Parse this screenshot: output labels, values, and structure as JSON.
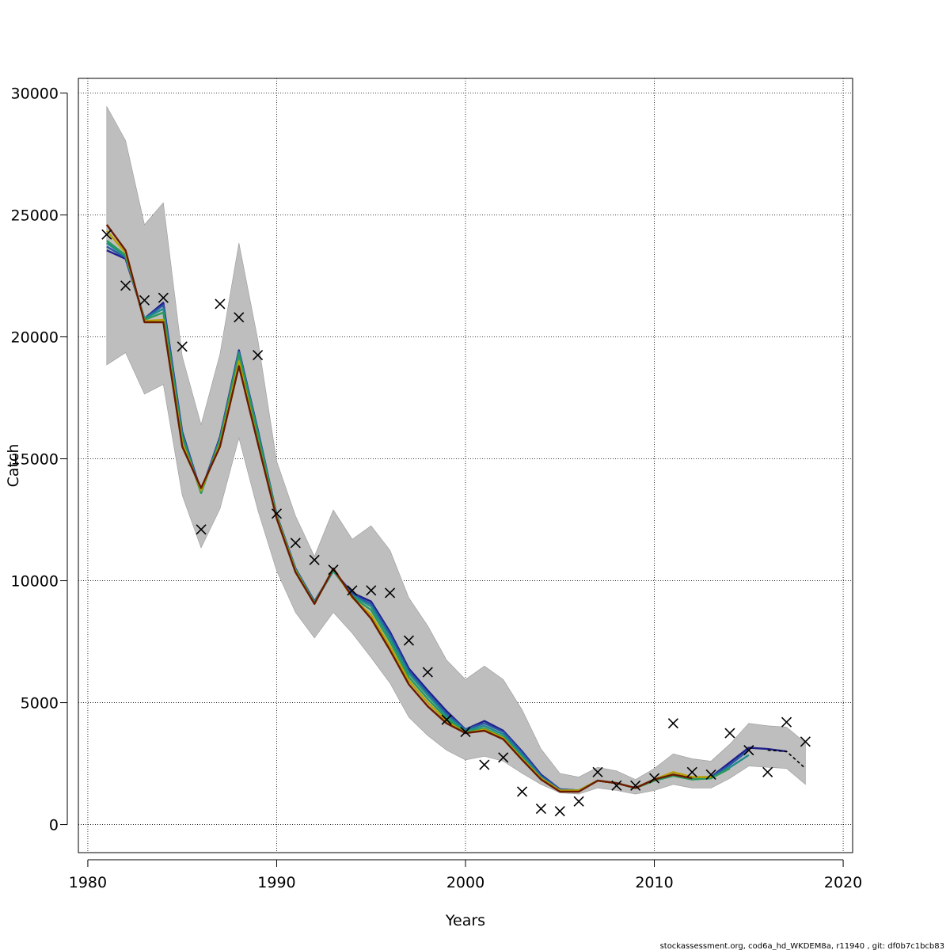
{
  "chart_data": {
    "type": "line",
    "xlabel": "Years",
    "ylabel": "Catch",
    "xlim": [
      1979.5,
      2020.5
    ],
    "ylim": [
      -1150,
      30600
    ],
    "xticks": [
      1980,
      1990,
      2000,
      2010,
      2020
    ],
    "yticks": [
      0,
      5000,
      10000,
      15000,
      20000,
      25000,
      30000
    ],
    "xtick_labels": [
      "1980",
      "1990",
      "2000",
      "2010",
      "2020"
    ],
    "ytick_labels": [
      "0",
      "5000",
      "10000",
      "15000",
      "20000",
      "25000",
      "30000"
    ],
    "grid": true,
    "colors": {
      "band": "#bebebe",
      "grid": "#000000",
      "points": "#000000",
      "series": [
        "#1f1f8c",
        "#2b57a8",
        "#1e8c8c",
        "#2a9a5a",
        "#b8a000",
        "#6b1a00",
        "#000000"
      ]
    },
    "band": {
      "x": [
        1981,
        1982,
        1983,
        1984,
        1985,
        1986,
        1987,
        1988,
        1989,
        1990,
        1991,
        1992,
        1993,
        1994,
        1995,
        1996,
        1997,
        1998,
        1999,
        2000,
        2001,
        2002,
        2003,
        2004,
        2005,
        2006,
        2007,
        2008,
        2009,
        2010,
        2011,
        2012,
        2013,
        2014,
        2015,
        2016,
        2017,
        2018
      ],
      "upper": [
        29450,
        28050,
        24600,
        25500,
        19200,
        16400,
        19300,
        23850,
        19900,
        14900,
        12650,
        11000,
        12900,
        11700,
        12250,
        11250,
        9300,
        8150,
        6750,
        5950,
        6500,
        5950,
        4700,
        3100,
        2100,
        1950,
        2350,
        2200,
        1850,
        2300,
        2900,
        2700,
        2600,
        3300,
        4150,
        4050,
        4000,
        3350
      ],
      "lower": [
        18850,
        19350,
        17650,
        18050,
        13500,
        11350,
        12950,
        15850,
        12900,
        10400,
        8700,
        7650,
        8700,
        7850,
        6850,
        5800,
        4400,
        3650,
        3050,
        2650,
        2800,
        2600,
        2100,
        1650,
        1300,
        1250,
        1500,
        1400,
        1250,
        1400,
        1650,
        1500,
        1500,
        1900,
        2400,
        2350,
        2300,
        1650
      ]
    },
    "series": [
      {
        "x": [
          1981,
          1982,
          1983,
          1984,
          1985,
          1986,
          1987,
          1988,
          1989,
          1990,
          1991,
          1992,
          1993,
          1994,
          1995,
          1996,
          1997,
          1998,
          1999,
          2000,
          2001,
          2002,
          2003,
          2004,
          2005,
          2006,
          2007,
          2008,
          2009,
          2010,
          2011,
          2012,
          2013,
          2014,
          2015,
          2016,
          2017
        ],
        "values": [
          23550,
          23200,
          20750,
          21400,
          16100,
          13650,
          15900,
          19450,
          16200,
          12700,
          10500,
          9150,
          10400,
          9500,
          9150,
          7900,
          6400,
          5500,
          4650,
          3900,
          4250,
          3850,
          3000,
          2050,
          1450,
          1400,
          1800,
          1700,
          1500,
          1850,
          2050,
          1900,
          1950,
          2550,
          3150,
          3100,
          3000
        ]
      },
      {
        "x": [
          1981,
          1982,
          1983,
          1984,
          1985,
          1986,
          1987,
          1988,
          1989,
          1990,
          1991,
          1992,
          1993,
          1994,
          1995,
          1996,
          1997,
          1998,
          1999,
          2000,
          2001,
          2002,
          2003,
          2004,
          2005,
          2006,
          2007,
          2008,
          2009,
          2010,
          2011,
          2012,
          2013,
          2014,
          2015
        ],
        "values": [
          23700,
          23250,
          20750,
          21300,
          16050,
          13650,
          15850,
          19400,
          16150,
          12700,
          10500,
          9150,
          10400,
          9450,
          9050,
          7800,
          6300,
          5400,
          4550,
          3900,
          4150,
          3800,
          2950,
          2000,
          1450,
          1400,
          1800,
          1700,
          1500,
          1850,
          2050,
          1900,
          1950,
          2450,
          3050
        ]
      },
      {
        "x": [
          1981,
          1982,
          1983,
          1984,
          1985,
          1986,
          1987,
          1988,
          1989,
          1990,
          1991,
          1992,
          1993,
          1994,
          1995,
          1996,
          1997,
          1998,
          1999,
          2000,
          2001,
          2002,
          2003,
          2004,
          2005,
          2006,
          2007,
          2008,
          2009,
          2010,
          2011,
          2012,
          2013,
          2014,
          2015
        ],
        "values": [
          23850,
          23300,
          20750,
          21150,
          15950,
          13600,
          15800,
          19350,
          16100,
          12650,
          10450,
          9100,
          10400,
          9400,
          8950,
          7650,
          6200,
          5300,
          4450,
          3850,
          4050,
          3700,
          2850,
          1950,
          1400,
          1400,
          1800,
          1700,
          1500,
          1800,
          2000,
          1850,
          1900,
          2350,
          2850
        ]
      },
      {
        "x": [
          1981,
          1982,
          1983,
          1984,
          1985,
          1986,
          1987,
          1988,
          1989,
          1990,
          1991,
          1992,
          1993,
          1994,
          1995,
          1996,
          1997,
          1998,
          1999,
          2000,
          2001,
          2002,
          2003,
          2004,
          2005,
          2006,
          2007,
          2008,
          2009,
          2010,
          2011,
          2012,
          2013,
          2014
        ],
        "values": [
          23950,
          23350,
          20700,
          21000,
          15850,
          13600,
          15750,
          19250,
          16000,
          12650,
          10450,
          9100,
          10450,
          9350,
          8800,
          7500,
          6050,
          5150,
          4350,
          3800,
          3950,
          3600,
          2750,
          1900,
          1400,
          1400,
          1800,
          1700,
          1500,
          1800,
          2000,
          1850,
          1900,
          2300
        ]
      },
      {
        "x": [
          1981,
          1982,
          1983,
          1984,
          1985,
          1986,
          1987,
          1988,
          1989,
          1990,
          1991,
          1992,
          1993,
          1994,
          1995,
          1996,
          1997,
          1998,
          1999,
          2000,
          2001,
          2002,
          2003,
          2004,
          2005,
          2006,
          2007,
          2008,
          2009,
          2010,
          2011,
          2012,
          2013
        ],
        "values": [
          24350,
          23450,
          20650,
          20700,
          15650,
          13700,
          15600,
          19000,
          15700,
          12600,
          10400,
          9050,
          10500,
          9300,
          8600,
          7300,
          5900,
          5000,
          4250,
          3750,
          3900,
          3550,
          2700,
          1900,
          1400,
          1400,
          1800,
          1700,
          1500,
          1850,
          2150,
          1950,
          1950
        ]
      },
      {
        "x": [
          1981,
          1982,
          1983,
          1984,
          1985,
          1986,
          1987,
          1988,
          1989,
          1990,
          1991,
          1992,
          1993,
          1994,
          1995,
          1996,
          1997,
          1998,
          1999,
          2000,
          2001,
          2002,
          2003,
          2004,
          2005,
          2006,
          2007,
          2008,
          2009,
          2010,
          2011,
          2012
        ],
        "values": [
          24600,
          23550,
          20600,
          20600,
          15500,
          13800,
          15500,
          18800,
          15650,
          12550,
          10350,
          9050,
          10500,
          9350,
          8450,
          7150,
          5750,
          4850,
          4150,
          3750,
          3850,
          3500,
          2650,
          1850,
          1350,
          1350,
          1800,
          1700,
          1500,
          1850,
          2050,
          1900
        ]
      },
      {
        "x": [
          2016,
          2017,
          2018
        ],
        "values": [
          3050,
          3000,
          2300
        ],
        "dashed": true
      }
    ],
    "observations": {
      "x": [
        1981,
        1982,
        1983,
        1984,
        1985,
        1986,
        1987,
        1988,
        1989,
        1990,
        1991,
        1992,
        1993,
        1994,
        1995,
        1996,
        1997,
        1998,
        1999,
        2000,
        2001,
        2002,
        2003,
        2004,
        2005,
        2006,
        2007,
        2008,
        2009,
        2010,
        2011,
        2012,
        2013,
        2014,
        2015,
        2016,
        2017,
        2018
      ],
      "values": [
        24200,
        22100,
        21500,
        21600,
        19600,
        12100,
        21350,
        20800,
        19250,
        12750,
        11550,
        10850,
        10450,
        9600,
        9600,
        9500,
        7550,
        6250,
        4300,
        3800,
        2450,
        2750,
        1350,
        650,
        550,
        950,
        2150,
        1600,
        1600,
        1900,
        4150,
        2150,
        2050,
        3750,
        3050,
        2150,
        4200,
        3400
      ],
      "marker": "x"
    }
  },
  "footer": {
    "text": "stockassessment.org, cod6a_hd_WKDEM8a, r11940 , git: df0b7c1bcb83"
  }
}
